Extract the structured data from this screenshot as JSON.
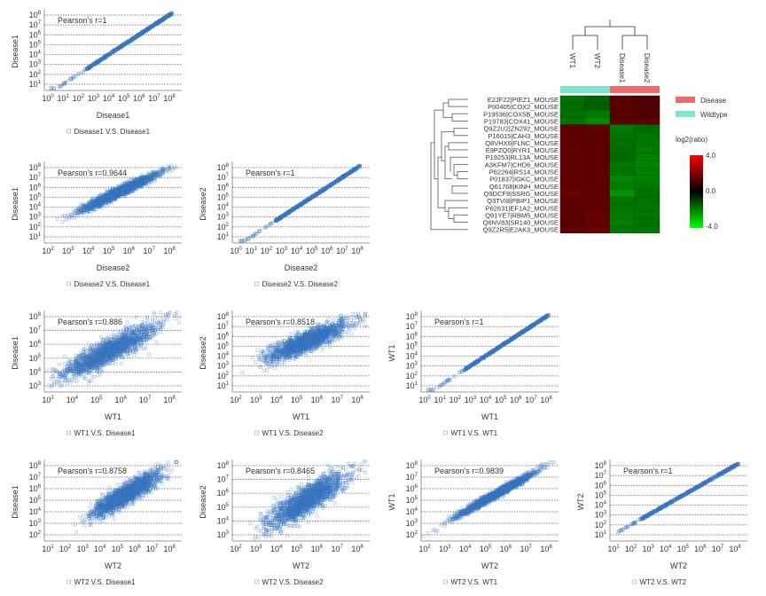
{
  "chart_data": [
    {
      "type": "scatter",
      "xlabel": "Disease1",
      "ylabel": "Disease1",
      "legend": "Disease1 V.S. Disease1",
      "annotation": "Pearson's r=1",
      "r": 1,
      "x_scale": "log",
      "y_scale": "log",
      "x_tick_exponents": [
        0,
        1,
        2,
        3,
        4,
        5,
        6,
        7,
        8
      ],
      "y_tick_exponents": [
        1,
        2,
        3,
        4,
        5,
        6,
        7,
        8
      ],
      "grid": "horizontal dotted",
      "legend_placement": "bottom"
    },
    {
      "type": "scatter",
      "xlabel": "Disease2",
      "ylabel": "Disease1",
      "legend": "Disease2 V.S. Disease1",
      "annotation": "Pearson's r=0.9644",
      "r": 0.9644,
      "x_scale": "log",
      "y_scale": "log",
      "x_tick_exponents": [
        2,
        3,
        4,
        5,
        6,
        7,
        8
      ],
      "y_tick_exponents": [
        1,
        2,
        3,
        4,
        5,
        6,
        7,
        8
      ],
      "grid": "horizontal dotted",
      "legend_placement": "bottom"
    },
    {
      "type": "scatter",
      "xlabel": "Disease2",
      "ylabel": "Disease2",
      "legend": "Disease2 V.S. Disease2",
      "annotation": "Pearson's r=1",
      "r": 1,
      "x_scale": "log",
      "y_scale": "log",
      "x_tick_exponents": [
        0,
        1,
        2,
        3,
        4,
        5,
        6,
        7,
        8
      ],
      "y_tick_exponents": [
        1,
        2,
        3,
        4,
        5,
        6,
        7,
        8
      ],
      "grid": "horizontal dotted",
      "legend_placement": "bottom"
    },
    {
      "type": "scatter",
      "xlabel": "WT1",
      "ylabel": "Disease1",
      "legend": "WT1 V.S. Disease1",
      "annotation": "Pearson's r=0.886",
      "r": 0.886,
      "x_scale": "log",
      "y_scale": "log",
      "x_tick_exponents": [
        3,
        4,
        5,
        6,
        7,
        8
      ],
      "y_tick_exponents": [
        3,
        4,
        5,
        6,
        7,
        8
      ],
      "grid": "horizontal dotted",
      "legend_placement": "bottom"
    },
    {
      "type": "scatter",
      "xlabel": "WT1",
      "ylabel": "Disease2",
      "legend": "WT1 V.S. Disease2",
      "annotation": "Pearson's r=0.8518",
      "r": 0.8518,
      "x_scale": "log",
      "y_scale": "log",
      "x_tick_exponents": [
        2,
        3,
        4,
        5,
        6,
        7,
        8
      ],
      "y_tick_exponents": [
        1,
        2,
        3,
        4,
        5,
        6,
        7,
        8
      ],
      "grid": "horizontal dotted",
      "legend_placement": "bottom"
    },
    {
      "type": "scatter",
      "xlabel": "WT1",
      "ylabel": "WT1",
      "legend": "WT1 V.S. WT1",
      "annotation": "Pearson's r=1",
      "r": 1,
      "x_scale": "log",
      "y_scale": "log",
      "x_tick_exponents": [
        0,
        1,
        2,
        3,
        4,
        5,
        6,
        7,
        8
      ],
      "y_tick_exponents": [
        1,
        2,
        3,
        4,
        5,
        6,
        7,
        8
      ],
      "grid": "horizontal dotted",
      "legend_placement": "bottom"
    },
    {
      "type": "scatter",
      "xlabel": "WT2",
      "ylabel": "Disease1",
      "legend": "WT2 V.S. Disease1",
      "annotation": "Pearson's r=0.8758",
      "r": 0.8758,
      "x_scale": "log",
      "y_scale": "log",
      "x_tick_exponents": [
        1,
        2,
        3,
        4,
        5,
        6,
        7,
        8
      ],
      "y_tick_exponents": [
        2,
        3,
        4,
        5,
        6,
        7,
        8
      ],
      "grid": "horizontal dotted",
      "legend_placement": "bottom"
    },
    {
      "type": "scatter",
      "xlabel": "WT2",
      "ylabel": "Disease2",
      "legend": "WT2 V.S. Disease2",
      "annotation": "Pearson's r=0.8465",
      "r": 0.8465,
      "x_scale": "log",
      "y_scale": "log",
      "x_tick_exponents": [
        2,
        3,
        4,
        5,
        6,
        7,
        8
      ],
      "y_tick_exponents": [
        3,
        4,
        5,
        6,
        7,
        8
      ],
      "grid": "horizontal dotted",
      "legend_placement": "bottom"
    },
    {
      "type": "scatter",
      "xlabel": "WT2",
      "ylabel": "WT1",
      "legend": "WT2 V.S. WT1",
      "annotation": "Pearson's r=0.9839",
      "r": 0.9839,
      "x_scale": "log",
      "y_scale": "log",
      "x_tick_exponents": [
        2,
        3,
        4,
        5,
        6,
        7,
        8
      ],
      "y_tick_exponents": [
        2,
        3,
        4,
        5,
        6,
        7,
        8
      ],
      "grid": "horizontal dotted",
      "legend_placement": "bottom"
    },
    {
      "type": "scatter",
      "xlabel": "WT2",
      "ylabel": "WT2",
      "legend": "WT2 V.S. WT2",
      "annotation": "Pearson's r=1",
      "r": 1,
      "x_scale": "log",
      "y_scale": "log",
      "x_tick_exponents": [
        1,
        2,
        3,
        4,
        5,
        6,
        7,
        8
      ],
      "y_tick_exponents": [
        1,
        2,
        3,
        4,
        5,
        6,
        7,
        8
      ],
      "grid": "horizontal dotted",
      "legend_placement": "bottom"
    },
    {
      "type": "heatmap",
      "columns": [
        "WT1",
        "WT2",
        "Disease1",
        "Disease2"
      ],
      "column_groups": [
        "Wildtype",
        "Wildtype",
        "Disease",
        "Disease"
      ],
      "rows": [
        "E2JF22|PIEZ1_MOUSE",
        "P00405|COX2_MOUSE",
        "P19536|COX5B_MOUSE",
        "P19783|COX41_MOUSE",
        "Q9Z2U2|ZN292_MOUSE",
        "P16015|CAH3_MOUSE",
        "Q8VHX6|FLNC_MOUSE",
        "E9PZQ0|RYR1_MOUSE",
        "P19253|RL13A_MOUSE",
        "A3KFM7|CHD6_MOUSE",
        "P62264|RS14_MOUSE",
        "P01837|IGKC_MOUSE",
        "Q61768|KINH_MOUSE",
        "Q9DCF9|SSRG_MOUSE",
        "Q3TVI8|PBIP1_MOUSE",
        "P62631|EF1A2_MOUSE",
        "Q91YE7|RBM5_MOUSE",
        "Q6NV83|SR140_MOUSE",
        "Q9Z2R5|E2AK3_MOUSE"
      ],
      "values": [
        [
          -2.8,
          -2.4,
          2.2,
          1.8
        ],
        [
          -2.6,
          -2.3,
          2.2,
          1.9
        ],
        [
          -2.7,
          -2.9,
          2.1,
          2.0
        ],
        [
          -2.8,
          -3.3,
          2.2,
          2.3
        ],
        [
          2.3,
          2.4,
          -3.0,
          -2.6
        ],
        [
          2.3,
          2.2,
          -2.9,
          -2.8
        ],
        [
          2.3,
          2.3,
          -2.7,
          -2.9
        ],
        [
          2.4,
          2.3,
          -2.7,
          -3.0
        ],
        [
          2.3,
          2.2,
          -2.6,
          -3.1
        ],
        [
          2.4,
          2.3,
          -2.9,
          -3.2
        ],
        [
          2.4,
          2.3,
          -2.8,
          -3.1
        ],
        [
          2.3,
          2.2,
          -3.3,
          -3.1
        ],
        [
          2.3,
          2.3,
          -3.0,
          -2.9
        ],
        [
          2.6,
          2.3,
          -3.6,
          -2.8
        ],
        [
          2.3,
          2.4,
          -2.9,
          -2.8
        ],
        [
          2.3,
          2.3,
          -2.8,
          -2.9
        ],
        [
          2.3,
          2.4,
          -3.0,
          -2.9
        ],
        [
          2.2,
          2.4,
          -3.1,
          -2.8
        ],
        [
          2.3,
          2.4,
          -2.9,
          -2.8
        ]
      ],
      "colorbar": {
        "title": "log2(ratio)",
        "min": -4,
        "max": 4,
        "ticks": [
          "4.0",
          "0.0",
          "-4.0"
        ],
        "low_color": "#00ff00",
        "mid_color": "#000000",
        "high_color": "#ff0000"
      },
      "legend": [
        {
          "label": "Disease",
          "color": "#f06a6a"
        },
        {
          "label": "Wildtype",
          "color": "#7fe5d3"
        }
      ]
    }
  ],
  "colors": {
    "point": "#3a76c0",
    "grid": "#555555"
  }
}
